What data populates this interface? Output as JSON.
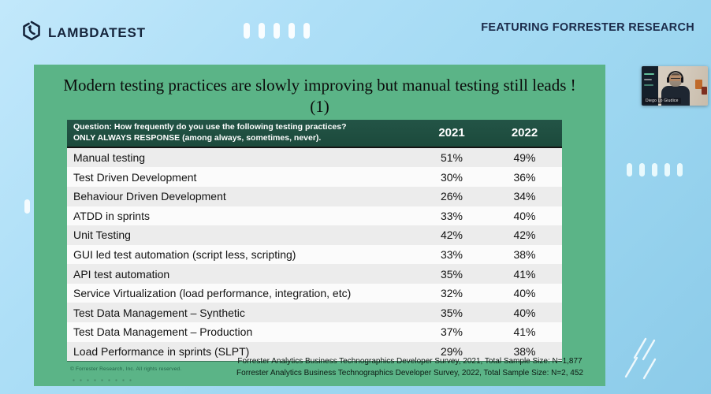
{
  "header": {
    "logo_text": "LAMBDATEST",
    "featuring_text": "FEATURING FORRESTER RESEARCH"
  },
  "slide": {
    "title": "Modern testing practices are slowly improving but manual testing still leads !  (1)",
    "question_line1": "Question: How frequently do you use the following testing practices?",
    "question_line2": "ONLY ALWAYS RESPONSE (among always, sometimes, never).",
    "col_2021": "2021",
    "col_2022": "2022",
    "copyright": "© Forrester Research, Inc. All rights reserved.",
    "source_line1": "Forrester Analytics Business Technographics Developer Survey, 2021, Total Sample Size: N=1,877",
    "source_line2": "Forrester Analytics Business Technographics Developer Survey, 2022, Total Sample Size: N=2, 452"
  },
  "webcam": {
    "participant_name": "Diego Lo Giudice"
  },
  "chart_data": {
    "type": "table",
    "title": "Modern testing practices are slowly improving but manual testing still leads ! (1)",
    "columns": [
      "Testing practice",
      "2021",
      "2022"
    ],
    "rows": [
      {
        "label": "Manual testing",
        "y2021": "51%",
        "y2022": "49%"
      },
      {
        "label": "Test Driven Development",
        "y2021": "30%",
        "y2022": "36%"
      },
      {
        "label": "Behaviour Driven Development",
        "y2021": "26%",
        "y2022": "34%"
      },
      {
        "label": "ATDD in sprints",
        "y2021": "33%",
        "y2022": "40%"
      },
      {
        "label": "Unit Testing",
        "y2021": "42%",
        "y2022": "42%"
      },
      {
        "label": "GUI led test automation (script less, scripting)",
        "y2021": "33%",
        "y2022": "38%"
      },
      {
        "label": "API test automation",
        "y2021": "35%",
        "y2022": "41%"
      },
      {
        "label": "Service Virtualization (load performance, integration, etc)",
        "y2021": "32%",
        "y2022": "40%"
      },
      {
        "label": "Test Data Management – Synthetic",
        "y2021": "35%",
        "y2022": "40%"
      },
      {
        "label": "Test Data Management – Production",
        "y2021": "37%",
        "y2022": "41%"
      },
      {
        "label": "Load Performance in sprints (SLPT)",
        "y2021": "29%",
        "y2022": "38%"
      }
    ]
  },
  "colors": {
    "background_blue": "#aedff7",
    "slide_green": "#5bb487",
    "table_header_green": "#1e4f41",
    "brand_navy": "#15243b"
  }
}
